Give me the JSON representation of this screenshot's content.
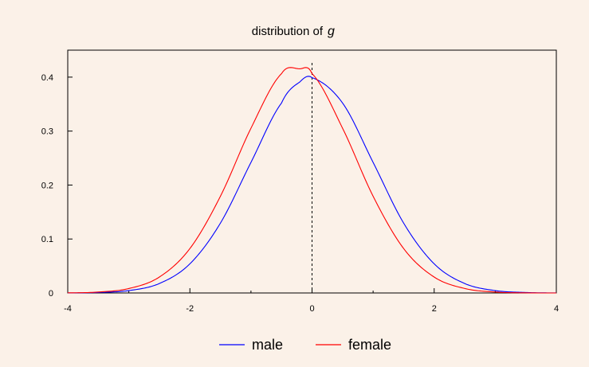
{
  "chart_data": {
    "type": "line",
    "title": "distribution of",
    "title_variable": "g",
    "xlabel": "",
    "ylabel": "",
    "xlim": [
      -4,
      4
    ],
    "ylim": [
      0,
      0.45
    ],
    "x_ticks": [
      -4,
      -2,
      0,
      2,
      4
    ],
    "y_ticks": [
      0,
      0.1,
      0.2,
      0.3,
      0.4
    ],
    "x_tick_labels": [
      "-4",
      "-2",
      "0",
      "2",
      "4"
    ],
    "y_tick_labels": [
      "0",
      "0.1",
      "0.2",
      "0.3",
      "0.4"
    ],
    "grid": false,
    "legend_position": "bottom",
    "reference_line": {
      "x": 0,
      "style": "dashed",
      "color": "#000000"
    },
    "x": [
      -4.0,
      -3.5,
      -3.0,
      -2.5,
      -2.0,
      -1.5,
      -1.0,
      -0.5,
      -0.2,
      0.0,
      0.5,
      1.0,
      1.5,
      2.0,
      2.5,
      3.0,
      3.5,
      4.0
    ],
    "series": [
      {
        "name": "male",
        "color": "#0000FF",
        "values": [
          0.0001,
          0.0009,
          0.0044,
          0.0175,
          0.054,
          0.1295,
          0.242,
          0.352,
          0.391,
          0.399,
          0.352,
          0.242,
          0.1295,
          0.054,
          0.0175,
          0.0044,
          0.0009,
          0.0001
        ]
      },
      {
        "name": "female",
        "color": "#FF0000",
        "values": [
          0.0002,
          0.0017,
          0.0082,
          0.0295,
          0.0823,
          0.1793,
          0.3053,
          0.4064,
          0.4154,
          0.4064,
          0.3053,
          0.1793,
          0.0823,
          0.0295,
          0.0083,
          0.0017,
          0.0002,
          0.0
        ]
      }
    ]
  }
}
